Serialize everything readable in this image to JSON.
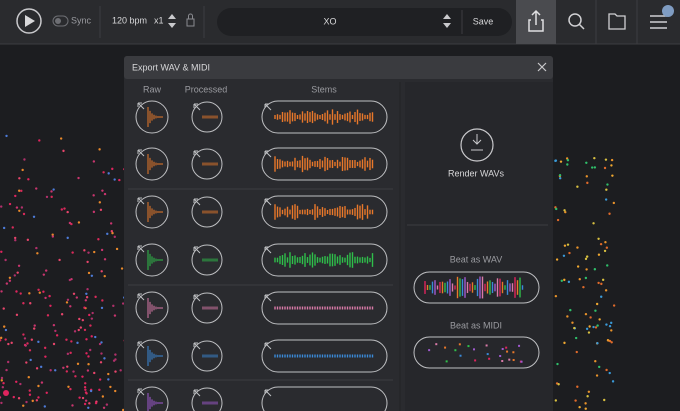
{
  "toolbar": {
    "sync": "Sync",
    "tempo": "120 bpm",
    "multiplier": "x1",
    "kit_name": "XO",
    "save": "Save"
  },
  "dialog": {
    "title": "Export WAV & MIDI",
    "columns": {
      "raw": "Raw",
      "processed": "Processed",
      "stems": "Stems"
    },
    "render": "Render WAVs",
    "beat_wav": "Beat as WAV",
    "beat_midi": "Beat as MIDI"
  }
}
